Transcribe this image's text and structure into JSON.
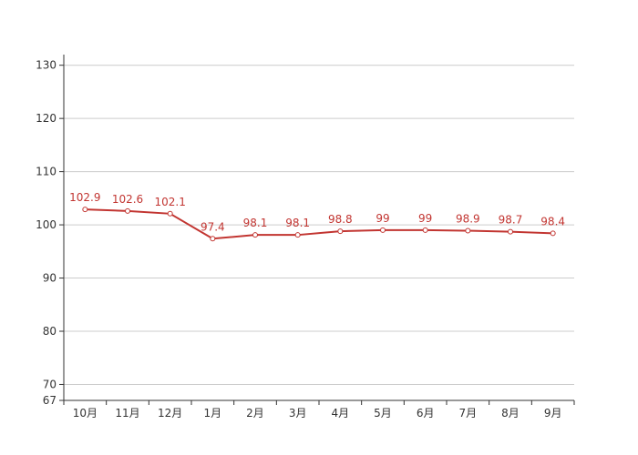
{
  "chart_data": {
    "type": "line",
    "categories": [
      "10月",
      "11月",
      "12月",
      "1月",
      "2月",
      "3月",
      "4月",
      "5月",
      "6月",
      "7月",
      "8月",
      "9月"
    ],
    "series": [
      {
        "values": [
          102.9,
          102.6,
          102.1,
          97.4,
          98.1,
          98.1,
          98.8,
          99,
          99,
          98.9,
          98.7,
          98.4
        ],
        "data_labels": [
          "102.9",
          "102.6",
          "102.1",
          "97.4",
          "98.1",
          "98.1",
          "98.8",
          "99",
          "99",
          "98.9",
          "98.7",
          "98.4"
        ],
        "color": "#c23531"
      }
    ],
    "yticks": [
      67,
      70,
      80,
      90,
      100,
      110,
      120,
      130
    ],
    "ytick_labels": [
      "67",
      "70",
      "80",
      "90",
      "100",
      "110",
      "120",
      "130"
    ],
    "ylim": [
      67,
      132
    ],
    "grid": true,
    "grid_color": "#cccccc",
    "axis_color": "#333333"
  }
}
